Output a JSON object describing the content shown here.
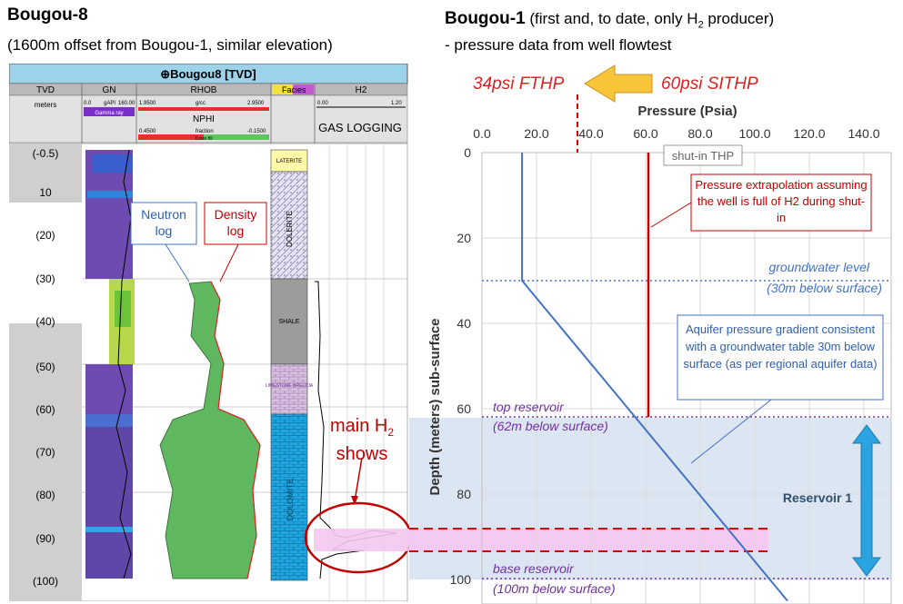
{
  "left_panel": {
    "title": "Bougou-8",
    "subtitle": "(1600m offset from Bougou-1, similar elevation)",
    "log_title": "⊕Bougou8 [TVD]",
    "tracks": {
      "tvd": {
        "header": "TVD",
        "unit": "meters"
      },
      "gn": {
        "header": "GN",
        "scale_left": "0.0",
        "scale_unit": "gAPI",
        "scale_right": "160.00",
        "curve": "Gamma ray"
      },
      "rhob": {
        "header": "RHOB",
        "scale_left": "1.9500",
        "scale_unit": "g/cc",
        "scale_right": "2.9500",
        "sub_header": "NPHI",
        "sub_left": "0.4500",
        "sub_unit": "fraction",
        "sub_right": "-0.1500",
        "sub_bar": "Cross fill"
      },
      "facies": {
        "header": "Facies"
      },
      "h2": {
        "header": "H2",
        "scale_left": "0.00",
        "scale_right": "1.20",
        "label": "GAS LOGGING"
      }
    },
    "depth_ticks": [
      "(-0.5)",
      "10",
      "(20)",
      "(30)",
      "(40)",
      "(50)",
      "(60)",
      "(70)",
      "(80)",
      "(90)",
      "(100)"
    ],
    "facies_units": [
      {
        "label": "LATERITE",
        "color": "#fffaa8"
      },
      {
        "label": "DOLERITE",
        "color": "#f0eef8"
      },
      {
        "label": "SHALE",
        "color": "#9c9c9c"
      },
      {
        "label": "LIMESTONE BRECCIA",
        "color": "#d8c0e0"
      },
      {
        "label": "DOLOMITE",
        "color": "#1fa6e0"
      }
    ],
    "callouts": {
      "neutron": "Neutron log",
      "density": "Density log"
    },
    "h2_shows": {
      "line1": "main H",
      "sub": "2",
      "line2": "shows"
    }
  },
  "right_panel": {
    "title_bold": "Bougou-1",
    "title_rest": " (first and, to date, only H",
    "title_sub": "2",
    "title_end": " producer)",
    "subtitle": "- pressure data from well flowtest",
    "fthp": "34psi FTHP",
    "sithp": "60psi SITHP",
    "shut_in_label": "shut-in THP",
    "extrapolation_note": "Pressure extrapolation assuming the well is full of H2 during shut-in",
    "gradient_note": "Aquifer pressure gradient consistent with a groundwater table 30m below surface (as per regional aquifer data)",
    "groundwater": [
      "groundwater level",
      "(30m below surface)"
    ],
    "top_reservoir": [
      "top reservoir",
      "(62m below surface)"
    ],
    "base_reservoir": [
      "base reservoir",
      "(100m below surface)"
    ],
    "reservoir_label": "Reservoir 1",
    "colors": {
      "red": "#c00000",
      "blue": "#4472c4",
      "purple": "#7030a0",
      "shade": "#dbe6f2",
      "pink": "#f6c6ef"
    }
  },
  "chart_data": {
    "type": "line",
    "title": "",
    "xlabel": "Pressure (Psia)",
    "ylabel": "Depth (meters) sub-surface",
    "x_ticks": [
      "0.0",
      "20.0",
      "40.0",
      "60.0",
      "80.0",
      "100.0",
      "120.0",
      "140.0"
    ],
    "y_ticks": [
      "0",
      "20",
      "40",
      "60",
      "80",
      "100"
    ],
    "xlim": [
      0,
      150
    ],
    "ylim": [
      0,
      105
    ],
    "grid": true,
    "series": [
      {
        "points": [
          [
            14.7,
            0
          ],
          [
            14.7,
            30
          ],
          [
            112,
            105
          ]
        ],
        "color": "#4472c4"
      },
      {
        "points": [
          [
            61,
            0
          ],
          [
            61,
            62
          ]
        ],
        "color": "#c00000"
      }
    ]
  }
}
